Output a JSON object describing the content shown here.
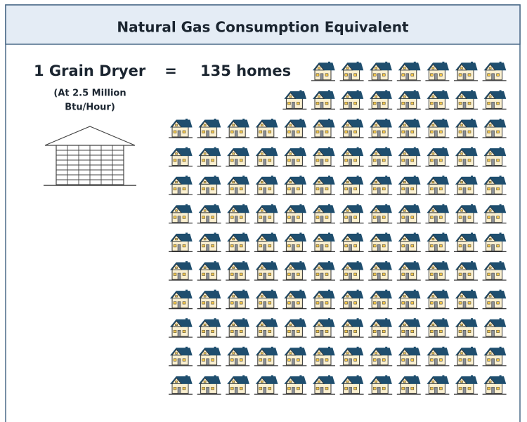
{
  "header": {
    "title": "Natural Gas Consumption Equivalent"
  },
  "equation": {
    "lhs": "1 Grain Dryer",
    "equals": "=",
    "rhs": "135 homes",
    "note_line1": "(At 2.5 Million",
    "note_line2": "Btu/Hour)"
  },
  "home_icons": 135
}
